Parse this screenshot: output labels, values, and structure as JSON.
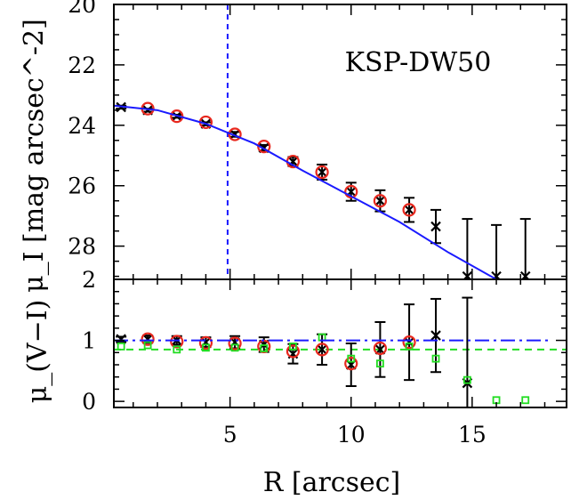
{
  "chart_data": [
    {
      "type": "scatter",
      "panel": "top",
      "annotation": "KSP-DW50",
      "ylabel": "μ_I [mag arcsec^-2]",
      "xlabel": "",
      "xlim": [
        0.2,
        18.9
      ],
      "ylim": [
        29.1,
        20
      ],
      "y_reversed": true,
      "xticks": [
        5,
        10,
        15
      ],
      "yticks": [
        20,
        22,
        24,
        26,
        28
      ],
      "vline": {
        "x": 4.9,
        "style": "dashed",
        "color": "#1a1aff"
      },
      "series": [
        {
          "marker": "x",
          "color": "#000000",
          "x": [
            0.5,
            1.6,
            2.8,
            4.0,
            5.2,
            6.4,
            7.6,
            8.8,
            10.0,
            11.2,
            12.4,
            13.5,
            14.8,
            16.0,
            17.2
          ],
          "y": [
            23.4,
            23.5,
            23.7,
            23.95,
            24.3,
            24.75,
            25.2,
            25.55,
            26.2,
            26.5,
            26.8,
            27.35,
            29.0,
            29.0,
            29.0
          ],
          "err": [
            0.05,
            0.05,
            0.05,
            0.05,
            0.08,
            0.1,
            0.15,
            0.25,
            0.3,
            0.35,
            0.4,
            0.55,
            1.9,
            1.7,
            1.9
          ]
        },
        {
          "marker": "circle",
          "color": "#e8281e",
          "x": [
            1.6,
            2.8,
            4.0,
            5.2,
            6.4,
            7.6,
            8.8,
            10.0,
            11.2,
            12.4
          ],
          "y": [
            23.45,
            23.7,
            23.9,
            24.3,
            24.7,
            25.2,
            25.55,
            26.2,
            26.5,
            26.8
          ]
        },
        {
          "marker": "line",
          "color": "#1a1aff",
          "x": [
            0.2,
            2,
            4,
            6,
            8,
            10,
            12,
            14,
            16
          ],
          "y": [
            23.35,
            23.5,
            23.95,
            24.6,
            25.5,
            26.35,
            27.2,
            28.2,
            29.1
          ]
        }
      ]
    },
    {
      "type": "scatter",
      "panel": "bottom",
      "ylabel": "μ_(V−I)",
      "xlabel": "R [arcsec]",
      "xlim": [
        0.2,
        18.9
      ],
      "ylim": [
        -0.1,
        2
      ],
      "xticks": [
        5,
        10,
        15
      ],
      "yticks": [
        0,
        1,
        2
      ],
      "hline": {
        "y": 0.85,
        "style": "dashed",
        "color": "#22dd22"
      },
      "series": [
        {
          "marker": "x",
          "color": "#000000",
          "x": [
            0.5,
            1.6,
            2.8,
            4.0,
            5.2,
            6.4,
            7.6,
            8.8,
            10.0,
            11.2,
            12.4,
            13.5,
            14.8
          ],
          "y": [
            1.02,
            1.02,
            1.0,
            0.97,
            0.97,
            0.93,
            0.78,
            0.85,
            0.6,
            0.85,
            0.97,
            1.08,
            0.3
          ],
          "err": [
            0.04,
            0.06,
            0.07,
            0.08,
            0.1,
            0.12,
            0.16,
            0.25,
            0.35,
            0.45,
            0.62,
            0.6,
            1.4
          ]
        },
        {
          "marker": "circle",
          "color": "#e8281e",
          "x": [
            1.6,
            2.8,
            4.0,
            5.2,
            6.4,
            7.6,
            8.8,
            10.0,
            11.2,
            12.4
          ],
          "y": [
            1.02,
            0.98,
            0.96,
            0.95,
            0.9,
            0.82,
            0.85,
            0.62,
            0.87,
            0.97
          ]
        },
        {
          "marker": "square",
          "color": "#22dd22",
          "x": [
            0.5,
            1.6,
            2.8,
            4.0,
            5.2,
            6.4,
            7.6,
            8.8,
            10.0,
            11.2,
            12.4,
            13.5,
            14.8,
            16.0,
            17.2
          ],
          "y": [
            0.9,
            0.92,
            0.85,
            0.88,
            0.88,
            0.87,
            0.9,
            1.05,
            0.7,
            0.62,
            0.9,
            0.7,
            0.35,
            0.02,
            0.02
          ]
        },
        {
          "marker": "dashdot",
          "color": "#1a1aff",
          "x": [
            0.2,
            18.2
          ],
          "y": [
            1.0,
            1.0
          ]
        }
      ]
    }
  ]
}
